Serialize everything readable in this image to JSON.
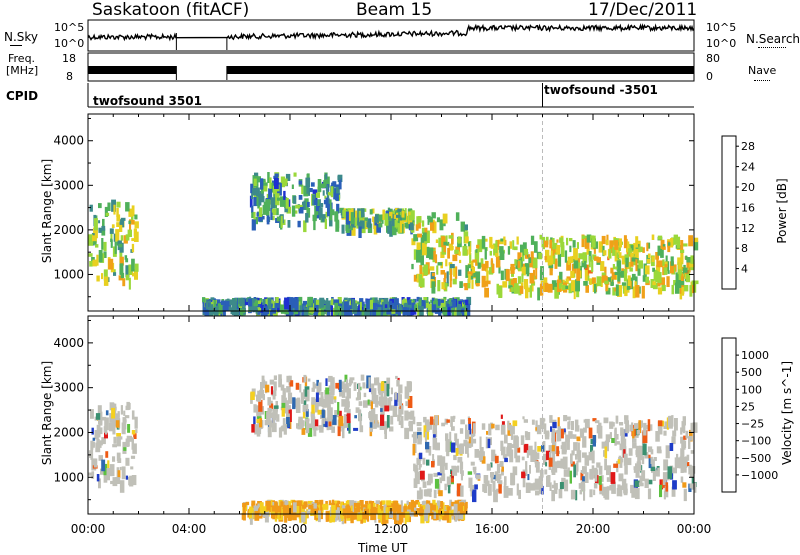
{
  "header": {
    "station": "Saskatoon (fitACF)",
    "beam": "Beam 15",
    "date": "17/Dec/2011"
  },
  "noise_panel": {
    "left_label": "N.Sky",
    "right_label": "N.Search",
    "left_ticks": [
      "10^5",
      "10^0"
    ],
    "right_ticks": [
      "10^5",
      "10^0"
    ]
  },
  "freq_panel": {
    "left_label_1": "Freq.",
    "left_label_2": "[MHz]",
    "right_label": "Nave",
    "left_ticks": [
      "18",
      "8"
    ],
    "right_ticks": [
      "80",
      "0"
    ]
  },
  "cpid": {
    "label": "CPID",
    "segments": [
      {
        "name": "twofsound 3501",
        "start_hour": 0
      },
      {
        "name": "twofsound -3501",
        "start_hour": 18
      }
    ]
  },
  "chart_data": [
    {
      "type": "heatmap",
      "quantity": "Power",
      "ylabel": "Slant Range [km]",
      "xlabel": "Time UT",
      "x_range_hours": [
        0,
        24
      ],
      "ylim": [
        180,
        4600
      ],
      "y_ticks": [
        1000,
        2000,
        3000,
        4000
      ],
      "colorbar": {
        "label": "Power [dB]",
        "ticks": [
          4,
          8,
          12,
          16,
          20,
          24,
          28
        ],
        "range": [
          0,
          30
        ],
        "colors": [
          "#1e2fd0",
          "#2a5fb8",
          "#3d8a8a",
          "#4fb05a",
          "#9ad83a",
          "#e8d020",
          "#f0a018",
          "#ee6a16",
          "#e02418"
        ]
      },
      "echo_regions": [
        {
          "hours": [
            0.0,
            1.9
          ],
          "range_km": [
            900,
            2700
          ],
          "power_db": 14
        },
        {
          "hours": [
            6.4,
            10.0
          ],
          "range_km": [
            2200,
            3300
          ],
          "power_db": 9
        },
        {
          "hours": [
            10.0,
            12.8
          ],
          "range_km": [
            2100,
            2500
          ],
          "power_db": 12
        },
        {
          "hours": [
            12.8,
            15.0
          ],
          "range_km": [
            800,
            2400
          ],
          "power_db": 16
        },
        {
          "hours": [
            15.0,
            24.0
          ],
          "range_km": [
            700,
            1900
          ],
          "power_db": 17
        },
        {
          "hours": [
            4.5,
            15.0
          ],
          "range_km": [
            200,
            500
          ],
          "power_db": 8
        }
      ]
    },
    {
      "type": "heatmap",
      "quantity": "Velocity",
      "ylabel": "Slant Range [km]",
      "xlabel": "Time UT",
      "x_range_hours": [
        0,
        24
      ],
      "ylim": [
        180,
        4600
      ],
      "y_ticks": [
        1000,
        2000,
        3000,
        4000
      ],
      "colorbar": {
        "label": "Velocity [m s^-1]",
        "ticks": [
          "1000",
          "500",
          "100",
          "25",
          "−25",
          "−100",
          "−500",
          "−1000"
        ],
        "colors": [
          "#1e3cc8",
          "#2e68b0",
          "#3a9070",
          "#5cc040",
          "#c0c0b8",
          "#f4d020",
          "#f09a18",
          "#ee5a14",
          "#e01818"
        ]
      },
      "echo_regions": [
        {
          "hours": [
            0.0,
            1.9
          ],
          "range_km": [
            900,
            2700
          ],
          "velocity": 0
        },
        {
          "hours": [
            6.4,
            12.8
          ],
          "range_km": [
            2100,
            3300
          ],
          "velocity": 0
        },
        {
          "hours": [
            12.8,
            24.0
          ],
          "range_km": [
            700,
            2400
          ],
          "velocity": 0
        },
        {
          "hours": [
            6.0,
            15.0
          ],
          "range_km": [
            200,
            500
          ],
          "velocity": -150
        }
      ]
    }
  ],
  "x_axis": {
    "label": "Time UT",
    "ticks": [
      "00:00",
      "04:00",
      "08:00",
      "12:00",
      "16:00",
      "20:00",
      "00:00"
    ]
  }
}
